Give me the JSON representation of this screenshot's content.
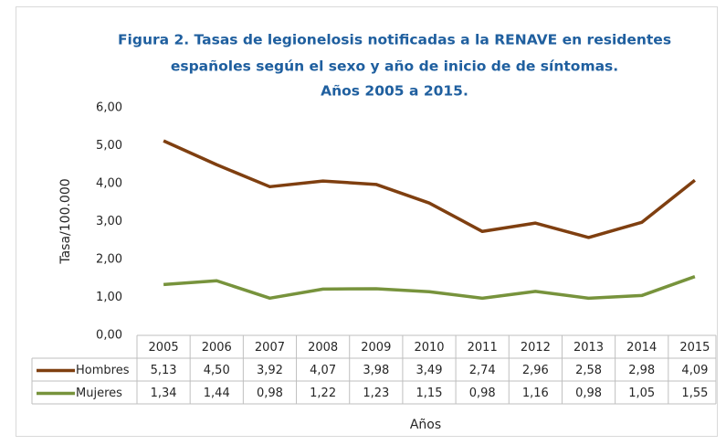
{
  "chart_data": {
    "type": "line",
    "title": [
      "Figura 2. Tasas de legionelosis notificadas a la RENAVE en residentes",
      "españoles según el sexo y año de inicio de de síntomas.",
      "Años 2005 a 2015."
    ],
    "x_label": "Años",
    "y_label": "Tasa/100.000",
    "categories": [
      "2005",
      "2006",
      "2007",
      "2008",
      "2009",
      "2010",
      "2011",
      "2012",
      "2013",
      "2014",
      "2015"
    ],
    "series": [
      {
        "name": "Hombres",
        "color": "#7f3f10",
        "values": [
          5.13,
          4.5,
          3.92,
          4.07,
          3.98,
          3.49,
          2.74,
          2.96,
          2.58,
          2.98,
          4.09
        ],
        "value_labels": [
          "5,13",
          "4,50",
          "3,92",
          "4,07",
          "3,98",
          "3,49",
          "2,74",
          "2,96",
          "2,58",
          "2,98",
          "4,09"
        ]
      },
      {
        "name": "Mujeres",
        "color": "#77933c",
        "values": [
          1.34,
          1.44,
          0.98,
          1.22,
          1.23,
          1.15,
          0.98,
          1.16,
          0.98,
          1.05,
          1.55
        ],
        "value_labels": [
          "1,34",
          "1,44",
          "0,98",
          "1,22",
          "1,23",
          "1,15",
          "0,98",
          "1,16",
          "0,98",
          "1,05",
          "1,55"
        ]
      }
    ],
    "ylim": [
      0,
      6
    ],
    "yticks": [
      {
        "value": 0,
        "label": "0,00"
      },
      {
        "value": 1,
        "label": "1,00"
      },
      {
        "value": 2,
        "label": "2,00"
      },
      {
        "value": 3,
        "label": "3,00"
      },
      {
        "value": 4,
        "label": "4,00"
      },
      {
        "value": 5,
        "label": "5,00"
      },
      {
        "value": 6,
        "label": "6,00"
      }
    ],
    "grid": false
  }
}
